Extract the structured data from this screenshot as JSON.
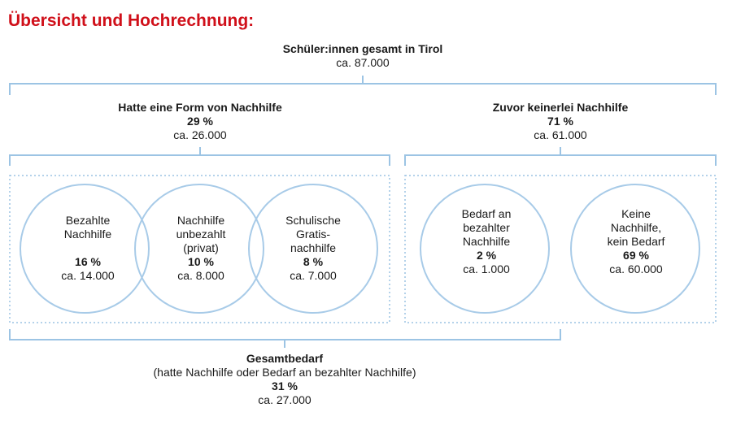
{
  "title": "Übersicht und Hochrechnung:",
  "total": {
    "heading": "Schüler:innen gesamt in Tirol",
    "value": "ca. 87.000"
  },
  "group_left": {
    "heading": "Hatte eine Form von Nachhilfe",
    "percent": "29 %",
    "value": "ca. 26.000"
  },
  "group_right": {
    "heading": "Zuvor keinerlei Nachhilfe",
    "percent": "71 %",
    "value": "ca. 61.000"
  },
  "circles": [
    {
      "lines": [
        "Bezahlte",
        "Nachhilfe"
      ],
      "percent": "16 %",
      "value": "ca. 14.000"
    },
    {
      "lines": [
        "Nachhilfe",
        "unbezahlt",
        "(privat)"
      ],
      "percent": "10 %",
      "value": "ca. 8.000"
    },
    {
      "lines": [
        "Schulische",
        "Gratis-",
        "nachhilfe"
      ],
      "percent": "8 %",
      "value": "ca. 7.000"
    },
    {
      "lines": [
        "Bedarf an",
        "bezahlter",
        "Nachhilfe"
      ],
      "percent": "2 %",
      "value": "ca. 1.000"
    },
    {
      "lines": [
        "Keine",
        "Nachhilfe,",
        "kein Bedarf"
      ],
      "percent": "69 %",
      "value": "ca. 60.000"
    }
  ],
  "overall_need": {
    "heading": "Gesamtbedarf",
    "subheading": "(hatte Nachhilfe oder Bedarf an bezahlter Nachhilfe)",
    "percent": "31 %",
    "value": "ca. 27.000"
  },
  "colors": {
    "title": "#d0101a",
    "stroke": "#9cc4e4",
    "text": "#1a1a1a"
  }
}
